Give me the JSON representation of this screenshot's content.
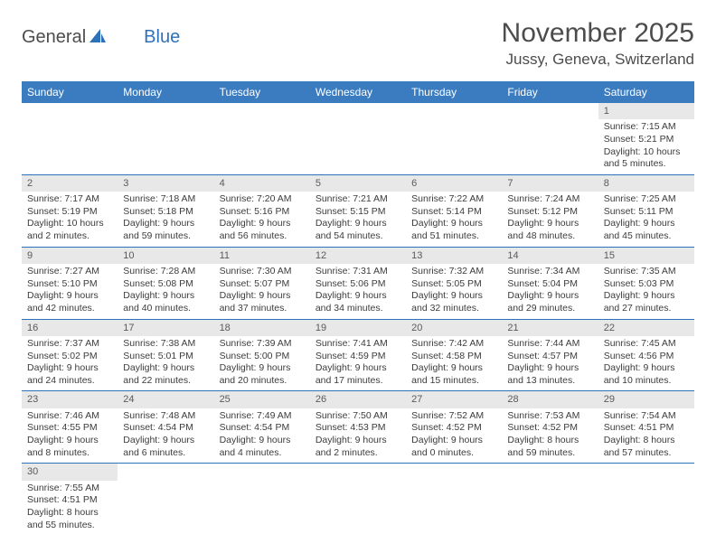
{
  "logo": {
    "text1": "General",
    "text2": "Blue"
  },
  "title": "November 2025",
  "location": "Jussy, Geneva, Switzerland",
  "colors": {
    "header_bg": "#3b7cc0",
    "header_text": "#ffffff",
    "day_header_bg": "#e8e8e8",
    "border": "#2f71b8",
    "text": "#3c3c3c"
  },
  "weekdays": [
    "Sunday",
    "Monday",
    "Tuesday",
    "Wednesday",
    "Thursday",
    "Friday",
    "Saturday"
  ],
  "weeks": [
    [
      {
        "n": "",
        "sunrise": "",
        "sunset": "",
        "daylight": ""
      },
      {
        "n": "",
        "sunrise": "",
        "sunset": "",
        "daylight": ""
      },
      {
        "n": "",
        "sunrise": "",
        "sunset": "",
        "daylight": ""
      },
      {
        "n": "",
        "sunrise": "",
        "sunset": "",
        "daylight": ""
      },
      {
        "n": "",
        "sunrise": "",
        "sunset": "",
        "daylight": ""
      },
      {
        "n": "",
        "sunrise": "",
        "sunset": "",
        "daylight": ""
      },
      {
        "n": "1",
        "sunrise": "Sunrise: 7:15 AM",
        "sunset": "Sunset: 5:21 PM",
        "daylight": "Daylight: 10 hours and 5 minutes."
      }
    ],
    [
      {
        "n": "2",
        "sunrise": "Sunrise: 7:17 AM",
        "sunset": "Sunset: 5:19 PM",
        "daylight": "Daylight: 10 hours and 2 minutes."
      },
      {
        "n": "3",
        "sunrise": "Sunrise: 7:18 AM",
        "sunset": "Sunset: 5:18 PM",
        "daylight": "Daylight: 9 hours and 59 minutes."
      },
      {
        "n": "4",
        "sunrise": "Sunrise: 7:20 AM",
        "sunset": "Sunset: 5:16 PM",
        "daylight": "Daylight: 9 hours and 56 minutes."
      },
      {
        "n": "5",
        "sunrise": "Sunrise: 7:21 AM",
        "sunset": "Sunset: 5:15 PM",
        "daylight": "Daylight: 9 hours and 54 minutes."
      },
      {
        "n": "6",
        "sunrise": "Sunrise: 7:22 AM",
        "sunset": "Sunset: 5:14 PM",
        "daylight": "Daylight: 9 hours and 51 minutes."
      },
      {
        "n": "7",
        "sunrise": "Sunrise: 7:24 AM",
        "sunset": "Sunset: 5:12 PM",
        "daylight": "Daylight: 9 hours and 48 minutes."
      },
      {
        "n": "8",
        "sunrise": "Sunrise: 7:25 AM",
        "sunset": "Sunset: 5:11 PM",
        "daylight": "Daylight: 9 hours and 45 minutes."
      }
    ],
    [
      {
        "n": "9",
        "sunrise": "Sunrise: 7:27 AM",
        "sunset": "Sunset: 5:10 PM",
        "daylight": "Daylight: 9 hours and 42 minutes."
      },
      {
        "n": "10",
        "sunrise": "Sunrise: 7:28 AM",
        "sunset": "Sunset: 5:08 PM",
        "daylight": "Daylight: 9 hours and 40 minutes."
      },
      {
        "n": "11",
        "sunrise": "Sunrise: 7:30 AM",
        "sunset": "Sunset: 5:07 PM",
        "daylight": "Daylight: 9 hours and 37 minutes."
      },
      {
        "n": "12",
        "sunrise": "Sunrise: 7:31 AM",
        "sunset": "Sunset: 5:06 PM",
        "daylight": "Daylight: 9 hours and 34 minutes."
      },
      {
        "n": "13",
        "sunrise": "Sunrise: 7:32 AM",
        "sunset": "Sunset: 5:05 PM",
        "daylight": "Daylight: 9 hours and 32 minutes."
      },
      {
        "n": "14",
        "sunrise": "Sunrise: 7:34 AM",
        "sunset": "Sunset: 5:04 PM",
        "daylight": "Daylight: 9 hours and 29 minutes."
      },
      {
        "n": "15",
        "sunrise": "Sunrise: 7:35 AM",
        "sunset": "Sunset: 5:03 PM",
        "daylight": "Daylight: 9 hours and 27 minutes."
      }
    ],
    [
      {
        "n": "16",
        "sunrise": "Sunrise: 7:37 AM",
        "sunset": "Sunset: 5:02 PM",
        "daylight": "Daylight: 9 hours and 24 minutes."
      },
      {
        "n": "17",
        "sunrise": "Sunrise: 7:38 AM",
        "sunset": "Sunset: 5:01 PM",
        "daylight": "Daylight: 9 hours and 22 minutes."
      },
      {
        "n": "18",
        "sunrise": "Sunrise: 7:39 AM",
        "sunset": "Sunset: 5:00 PM",
        "daylight": "Daylight: 9 hours and 20 minutes."
      },
      {
        "n": "19",
        "sunrise": "Sunrise: 7:41 AM",
        "sunset": "Sunset: 4:59 PM",
        "daylight": "Daylight: 9 hours and 17 minutes."
      },
      {
        "n": "20",
        "sunrise": "Sunrise: 7:42 AM",
        "sunset": "Sunset: 4:58 PM",
        "daylight": "Daylight: 9 hours and 15 minutes."
      },
      {
        "n": "21",
        "sunrise": "Sunrise: 7:44 AM",
        "sunset": "Sunset: 4:57 PM",
        "daylight": "Daylight: 9 hours and 13 minutes."
      },
      {
        "n": "22",
        "sunrise": "Sunrise: 7:45 AM",
        "sunset": "Sunset: 4:56 PM",
        "daylight": "Daylight: 9 hours and 10 minutes."
      }
    ],
    [
      {
        "n": "23",
        "sunrise": "Sunrise: 7:46 AM",
        "sunset": "Sunset: 4:55 PM",
        "daylight": "Daylight: 9 hours and 8 minutes."
      },
      {
        "n": "24",
        "sunrise": "Sunrise: 7:48 AM",
        "sunset": "Sunset: 4:54 PM",
        "daylight": "Daylight: 9 hours and 6 minutes."
      },
      {
        "n": "25",
        "sunrise": "Sunrise: 7:49 AM",
        "sunset": "Sunset: 4:54 PM",
        "daylight": "Daylight: 9 hours and 4 minutes."
      },
      {
        "n": "26",
        "sunrise": "Sunrise: 7:50 AM",
        "sunset": "Sunset: 4:53 PM",
        "daylight": "Daylight: 9 hours and 2 minutes."
      },
      {
        "n": "27",
        "sunrise": "Sunrise: 7:52 AM",
        "sunset": "Sunset: 4:52 PM",
        "daylight": "Daylight: 9 hours and 0 minutes."
      },
      {
        "n": "28",
        "sunrise": "Sunrise: 7:53 AM",
        "sunset": "Sunset: 4:52 PM",
        "daylight": "Daylight: 8 hours and 59 minutes."
      },
      {
        "n": "29",
        "sunrise": "Sunrise: 7:54 AM",
        "sunset": "Sunset: 4:51 PM",
        "daylight": "Daylight: 8 hours and 57 minutes."
      }
    ],
    [
      {
        "n": "30",
        "sunrise": "Sunrise: 7:55 AM",
        "sunset": "Sunset: 4:51 PM",
        "daylight": "Daylight: 8 hours and 55 minutes."
      },
      {
        "n": "",
        "sunrise": "",
        "sunset": "",
        "daylight": ""
      },
      {
        "n": "",
        "sunrise": "",
        "sunset": "",
        "daylight": ""
      },
      {
        "n": "",
        "sunrise": "",
        "sunset": "",
        "daylight": ""
      },
      {
        "n": "",
        "sunrise": "",
        "sunset": "",
        "daylight": ""
      },
      {
        "n": "",
        "sunrise": "",
        "sunset": "",
        "daylight": ""
      },
      {
        "n": "",
        "sunrise": "",
        "sunset": "",
        "daylight": ""
      }
    ]
  ]
}
